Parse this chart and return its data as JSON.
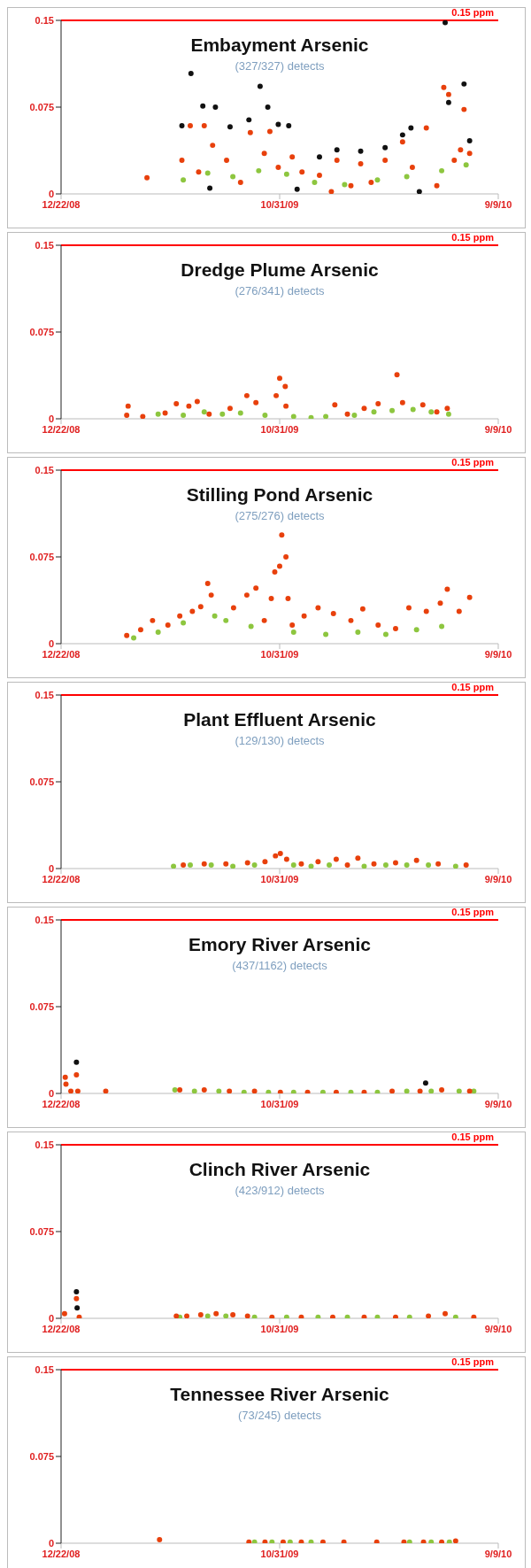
{
  "chart_data": [
    {
      "type": "scatter",
      "title": "Embayment  Arsenic",
      "subtitle": "(327/327) detects",
      "marker": "circle",
      "xlim": [
        "2008-12-22",
        "2010-09-09"
      ],
      "xticks": [
        {
          "value": "2008-12-22",
          "label": "12/22/08"
        },
        {
          "value": "2009-10-31",
          "label": "10/31/09"
        },
        {
          "value": "2010-09-09",
          "label": "9/9/10"
        }
      ],
      "ylim": [
        0,
        0.15
      ],
      "yticks": [
        0,
        0.075,
        0.15
      ],
      "ref_lines": [
        {
          "axis": "y",
          "value": 0.15,
          "label": "0.15 ppm",
          "color": "#ff0000"
        }
      ],
      "series": [
        {
          "color": "#111111",
          "x": [
            "2009-06-13",
            "2009-06-26",
            "2009-07-13",
            "2009-07-23",
            "2009-07-31",
            "2009-08-21",
            "2009-09-17",
            "2009-10-03",
            "2009-10-14",
            "2009-10-29",
            "2009-11-13",
            "2009-11-25",
            "2009-12-27",
            "2010-01-21",
            "2010-02-24",
            "2010-03-31",
            "2010-04-25",
            "2010-05-07",
            "2010-05-19",
            "2010-06-25",
            "2010-06-30",
            "2010-07-22",
            "2010-07-30"
          ],
          "values": [
            0.059,
            0.104,
            0.076,
            0.005,
            0.075,
            0.058,
            0.064,
            0.093,
            0.075,
            0.06,
            0.059,
            0.004,
            0.032,
            0.038,
            0.037,
            0.04,
            0.051,
            0.057,
            0.002,
            0.148,
            0.079,
            0.095,
            0.046
          ]
        },
        {
          "color": "#8dc63f",
          "x": [
            "2009-06-15",
            "2009-07-20",
            "2009-08-25",
            "2009-10-01",
            "2009-11-10",
            "2009-12-20",
            "2010-02-01",
            "2010-03-20",
            "2010-05-01",
            "2010-06-20",
            "2010-07-25"
          ],
          "values": [
            0.012,
            0.018,
            0.015,
            0.02,
            0.017,
            0.01,
            0.008,
            0.012,
            0.015,
            0.02,
            0.025
          ]
        },
        {
          "color": "#e8400c",
          "x": [
            "2009-04-24",
            "2009-06-13",
            "2009-06-25",
            "2009-07-07",
            "2009-07-15",
            "2009-07-27",
            "2009-08-16",
            "2009-09-05",
            "2009-09-19",
            "2009-10-09",
            "2009-10-17",
            "2009-10-29",
            "2009-11-18",
            "2009-12-02",
            "2009-12-27",
            "2010-01-13",
            "2010-01-21",
            "2010-02-10",
            "2010-02-24",
            "2010-03-11",
            "2010-03-31",
            "2010-04-25",
            "2010-05-09",
            "2010-05-29",
            "2010-06-13",
            "2010-06-23",
            "2010-06-30",
            "2010-07-08",
            "2010-07-17",
            "2010-07-22",
            "2010-07-30"
          ],
          "values": [
            0.014,
            0.029,
            0.059,
            0.019,
            0.059,
            0.042,
            0.029,
            0.01,
            0.053,
            0.035,
            0.054,
            0.023,
            0.032,
            0.019,
            0.016,
            0.002,
            0.029,
            0.007,
            0.026,
            0.01,
            0.029,
            0.045,
            0.023,
            0.057,
            0.007,
            0.092,
            0.086,
            0.029,
            0.038,
            0.073,
            0.035
          ]
        }
      ]
    },
    {
      "type": "scatter",
      "title": "Dredge Plume  Arsenic",
      "subtitle": "(276/341) detects",
      "marker": "circle",
      "xlim": [
        "2008-12-22",
        "2010-09-09"
      ],
      "xticks": [
        {
          "value": "2008-12-22",
          "label": "12/22/08"
        },
        {
          "value": "2009-10-31",
          "label": "10/31/09"
        },
        {
          "value": "2010-09-09",
          "label": "9/9/10"
        }
      ],
      "ylim": [
        0,
        0.15
      ],
      "yticks": [
        0,
        0.075,
        0.15
      ],
      "ref_lines": [
        {
          "axis": "y",
          "value": 0.15,
          "label": "0.15 ppm",
          "color": "#ff0000"
        }
      ],
      "series": [
        {
          "color": "#8dc63f",
          "x": [
            "2009-05-10",
            "2009-06-15",
            "2009-07-15",
            "2009-08-10",
            "2009-09-05",
            "2009-10-10",
            "2009-11-20",
            "2009-12-15",
            "2010-01-05",
            "2010-02-15",
            "2010-03-15",
            "2010-04-10",
            "2010-05-10",
            "2010-06-05",
            "2010-06-30"
          ],
          "values": [
            0.004,
            0.003,
            0.006,
            0.004,
            0.005,
            0.003,
            0.002,
            0.001,
            0.002,
            0.003,
            0.006,
            0.007,
            0.008,
            0.006,
            0.004
          ]
        },
        {
          "color": "#e8400c",
          "x": [
            "2009-03-26",
            "2009-03-28",
            "2009-04-18",
            "2009-05-20",
            "2009-06-05",
            "2009-06-23",
            "2009-07-05",
            "2009-07-22",
            "2009-08-21",
            "2009-09-14",
            "2009-09-27",
            "2009-10-26",
            "2009-10-31",
            "2009-11-08",
            "2009-11-09",
            "2010-01-18",
            "2010-02-05",
            "2010-03-01",
            "2010-03-21",
            "2010-04-17",
            "2010-04-25",
            "2010-05-24",
            "2010-06-13",
            "2010-06-28"
          ],
          "values": [
            0.003,
            0.011,
            0.002,
            0.005,
            0.013,
            0.011,
            0.015,
            0.004,
            0.009,
            0.02,
            0.014,
            0.02,
            0.035,
            0.028,
            0.011,
            0.012,
            0.004,
            0.009,
            0.013,
            0.038,
            0.014,
            0.012,
            0.006,
            0.009
          ]
        }
      ]
    },
    {
      "type": "scatter",
      "title": "Stilling Pond Arsenic",
      "subtitle": "(275/276) detects",
      "marker": "circle",
      "xlim": [
        "2008-12-22",
        "2010-09-09"
      ],
      "xticks": [
        {
          "value": "2008-12-22",
          "label": "12/22/08"
        },
        {
          "value": "2009-10-31",
          "label": "10/31/09"
        },
        {
          "value": "2010-09-09",
          "label": "9/9/10"
        }
      ],
      "ylim": [
        0,
        0.15
      ],
      "yticks": [
        0,
        0.075,
        0.15
      ],
      "ref_lines": [
        {
          "axis": "y",
          "value": 0.15,
          "label": "0.15 ppm",
          "color": "#ff0000"
        }
      ],
      "series": [
        {
          "color": "#8dc63f",
          "x": [
            "2009-04-05",
            "2009-05-10",
            "2009-06-15",
            "2009-07-30",
            "2009-08-15",
            "2009-09-20",
            "2009-11-20",
            "2010-01-05",
            "2010-02-20",
            "2010-04-01",
            "2010-05-15",
            "2010-06-20"
          ],
          "values": [
            0.005,
            0.01,
            0.018,
            0.024,
            0.02,
            0.015,
            0.01,
            0.008,
            0.01,
            0.008,
            0.012,
            0.015
          ]
        },
        {
          "color": "#e8400c",
          "x": [
            "2009-03-26",
            "2009-04-15",
            "2009-05-02",
            "2009-05-24",
            "2009-06-10",
            "2009-06-28",
            "2009-07-10",
            "2009-07-20",
            "2009-07-25",
            "2009-08-26",
            "2009-09-14",
            "2009-09-27",
            "2009-10-09",
            "2009-10-19",
            "2009-10-24",
            "2009-10-31",
            "2009-11-03",
            "2009-11-09",
            "2009-11-12",
            "2009-11-18",
            "2009-12-05",
            "2009-12-25",
            "2010-01-16",
            "2010-02-10",
            "2010-02-27",
            "2010-03-21",
            "2010-04-15",
            "2010-05-04",
            "2010-05-29",
            "2010-06-18",
            "2010-06-28",
            "2010-07-15",
            "2010-07-30"
          ],
          "values": [
            0.007,
            0.012,
            0.02,
            0.016,
            0.024,
            0.028,
            0.032,
            0.052,
            0.042,
            0.031,
            0.042,
            0.048,
            0.02,
            0.039,
            0.062,
            0.067,
            0.094,
            0.075,
            0.039,
            0.016,
            0.024,
            0.031,
            0.026,
            0.02,
            0.03,
            0.016,
            0.013,
            0.031,
            0.028,
            0.035,
            0.047,
            0.028,
            0.04
          ]
        }
      ]
    },
    {
      "type": "scatter",
      "title": "Plant Effluent Arsenic",
      "subtitle": "(129/130) detects",
      "marker": "circle",
      "xlim": [
        "2008-12-22",
        "2010-09-09"
      ],
      "xticks": [
        {
          "value": "2008-12-22",
          "label": "12/22/08"
        },
        {
          "value": "2009-10-31",
          "label": "10/31/09"
        },
        {
          "value": "2010-09-09",
          "label": "9/9/10"
        }
      ],
      "ylim": [
        0,
        0.15
      ],
      "yticks": [
        0,
        0.075,
        0.15
      ],
      "ref_lines": [
        {
          "axis": "y",
          "value": 0.15,
          "label": "0.15 ppm",
          "color": "#ff0000"
        }
      ],
      "series": [
        {
          "color": "#8dc63f",
          "x": [
            "2009-06-01",
            "2009-06-25",
            "2009-07-25",
            "2009-08-25",
            "2009-09-25",
            "2009-11-20",
            "2009-12-15",
            "2010-01-10",
            "2010-03-01",
            "2010-04-01",
            "2010-05-01",
            "2010-06-01",
            "2010-07-10"
          ],
          "values": [
            0.002,
            0.003,
            0.003,
            0.002,
            0.003,
            0.003,
            0.002,
            0.003,
            0.002,
            0.003,
            0.003,
            0.003,
            0.002
          ]
        },
        {
          "color": "#e8400c",
          "x": [
            "2009-06-15",
            "2009-07-15",
            "2009-08-15",
            "2009-09-15",
            "2009-10-10",
            "2009-10-25",
            "2009-11-01",
            "2009-11-10",
            "2009-12-01",
            "2009-12-25",
            "2010-01-20",
            "2010-02-05",
            "2010-02-20",
            "2010-03-15",
            "2010-04-15",
            "2010-05-15",
            "2010-06-15",
            "2010-07-25"
          ],
          "values": [
            0.003,
            0.004,
            0.004,
            0.005,
            0.006,
            0.011,
            0.013,
            0.008,
            0.004,
            0.006,
            0.008,
            0.003,
            0.009,
            0.004,
            0.005,
            0.007,
            0.004,
            0.003
          ]
        }
      ]
    },
    {
      "type": "scatter",
      "title": "Emory River Arsenic",
      "subtitle": "(437/1162) detects",
      "marker": "circle",
      "xlim": [
        "2008-12-22",
        "2010-09-09"
      ],
      "xticks": [
        {
          "value": "2008-12-22",
          "label": "12/22/08"
        },
        {
          "value": "2009-10-31",
          "label": "10/31/09"
        },
        {
          "value": "2010-09-09",
          "label": "9/9/10"
        }
      ],
      "ylim": [
        0,
        0.15
      ],
      "yticks": [
        0,
        0.075,
        0.15
      ],
      "ref_lines": [
        {
          "axis": "y",
          "value": 0.15,
          "label": "0.15 ppm",
          "color": "#ff0000"
        }
      ],
      "series": [
        {
          "color": "#111111",
          "x": [
            "2009-01-13",
            "2010-05-28"
          ],
          "values": [
            0.027,
            0.009
          ]
        },
        {
          "color": "#8dc63f",
          "x": [
            "2009-06-03",
            "2009-07-01",
            "2009-08-05",
            "2009-09-10",
            "2009-10-15",
            "2009-11-20",
            "2010-01-01",
            "2010-02-10",
            "2010-03-20",
            "2010-05-01",
            "2010-06-05",
            "2010-07-15",
            "2010-08-05"
          ],
          "values": [
            0.003,
            0.002,
            0.002,
            0.001,
            0.001,
            0.001,
            0.001,
            0.001,
            0.001,
            0.002,
            0.002,
            0.002,
            0.002
          ]
        },
        {
          "color": "#e8400c",
          "x": [
            "2008-12-28",
            "2008-12-29",
            "2009-01-05",
            "2009-01-13",
            "2009-01-15",
            "2009-02-24",
            "2009-06-10",
            "2009-07-15",
            "2009-08-20",
            "2009-09-25",
            "2009-11-01",
            "2009-12-10",
            "2010-01-20",
            "2010-03-01",
            "2010-04-10",
            "2010-05-20",
            "2010-06-20",
            "2010-07-30"
          ],
          "values": [
            0.014,
            0.008,
            0.002,
            0.016,
            0.002,
            0.002,
            0.003,
            0.003,
            0.002,
            0.002,
            0.001,
            0.001,
            0.001,
            0.001,
            0.002,
            0.002,
            0.003,
            0.002
          ]
        }
      ]
    },
    {
      "type": "scatter",
      "title": "Clinch River Arsenic",
      "subtitle": "(423/912) detects",
      "marker": "circle",
      "xlim": [
        "2008-12-22",
        "2010-09-09"
      ],
      "xticks": [
        {
          "value": "2008-12-22",
          "label": "12/22/08"
        },
        {
          "value": "2009-10-31",
          "label": "10/31/09"
        },
        {
          "value": "2010-09-09",
          "label": "9/9/10"
        }
      ],
      "ylim": [
        0,
        0.15
      ],
      "yticks": [
        0,
        0.075,
        0.15
      ],
      "ref_lines": [
        {
          "axis": "y",
          "value": 0.15,
          "label": "0.15 ppm",
          "color": "#ff0000"
        }
      ],
      "series": [
        {
          "color": "#111111",
          "x": [
            "2009-01-13",
            "2009-01-14"
          ],
          "values": [
            0.023,
            0.009
          ]
        },
        {
          "color": "#8dc63f",
          "x": [
            "2009-06-10",
            "2009-07-20",
            "2009-08-15",
            "2009-09-25",
            "2009-11-10",
            "2009-12-25",
            "2010-02-05",
            "2010-03-20",
            "2010-05-05",
            "2010-07-10"
          ],
          "values": [
            0.001,
            0.002,
            0.002,
            0.001,
            0.001,
            0.001,
            0.001,
            0.001,
            0.001,
            0.001
          ]
        },
        {
          "color": "#e8400c",
          "x": [
            "2008-12-27",
            "2009-01-13",
            "2009-01-17",
            "2009-06-05",
            "2009-06-20",
            "2009-07-10",
            "2009-08-01",
            "2009-08-25",
            "2009-09-15",
            "2009-10-20",
            "2009-12-01",
            "2010-01-15",
            "2010-03-01",
            "2010-04-15",
            "2010-06-01",
            "2010-06-25",
            "2010-08-05"
          ],
          "values": [
            0.004,
            0.017,
            0.001,
            0.002,
            0.002,
            0.003,
            0.004,
            0.003,
            0.002,
            0.001,
            0.001,
            0.001,
            0.001,
            0.001,
            0.002,
            0.004,
            0.001
          ]
        }
      ]
    },
    {
      "type": "scatter",
      "title": "Tennessee River Arsenic",
      "subtitle": "(73/245) detects",
      "marker": "circle",
      "xlim": [
        "2008-12-22",
        "2010-09-09"
      ],
      "xticks": [
        {
          "value": "2008-12-22",
          "label": "12/22/08"
        },
        {
          "value": "2009-10-31",
          "label": "10/31/09"
        },
        {
          "value": "2010-09-09",
          "label": "9/9/10"
        }
      ],
      "ylim": [
        0,
        0.15
      ],
      "yticks": [
        0,
        0.075,
        0.15
      ],
      "ref_lines": [
        {
          "axis": "y",
          "value": 0.15,
          "label": "0.15 ppm",
          "color": "#ff0000"
        }
      ],
      "series": [
        {
          "color": "#8dc63f",
          "x": [
            "2009-09-25",
            "2009-10-20",
            "2009-11-15",
            "2009-12-15",
            "2010-05-05",
            "2010-06-05",
            "2010-07-01"
          ],
          "values": [
            0.001,
            0.001,
            0.001,
            0.001,
            0.001,
            0.001,
            0.001
          ]
        },
        {
          "color": "#e8400c",
          "x": [
            "2009-05-12",
            "2009-09-17",
            "2009-10-10",
            "2009-11-05",
            "2009-12-01",
            "2010-01-01",
            "2010-01-31",
            "2010-03-19",
            "2010-04-27",
            "2010-05-25",
            "2010-06-20",
            "2010-07-10"
          ],
          "values": [
            0.003,
            0.001,
            0.001,
            0.001,
            0.001,
            0.001,
            0.001,
            0.001,
            0.001,
            0.001,
            0.001,
            0.002
          ]
        }
      ]
    }
  ]
}
